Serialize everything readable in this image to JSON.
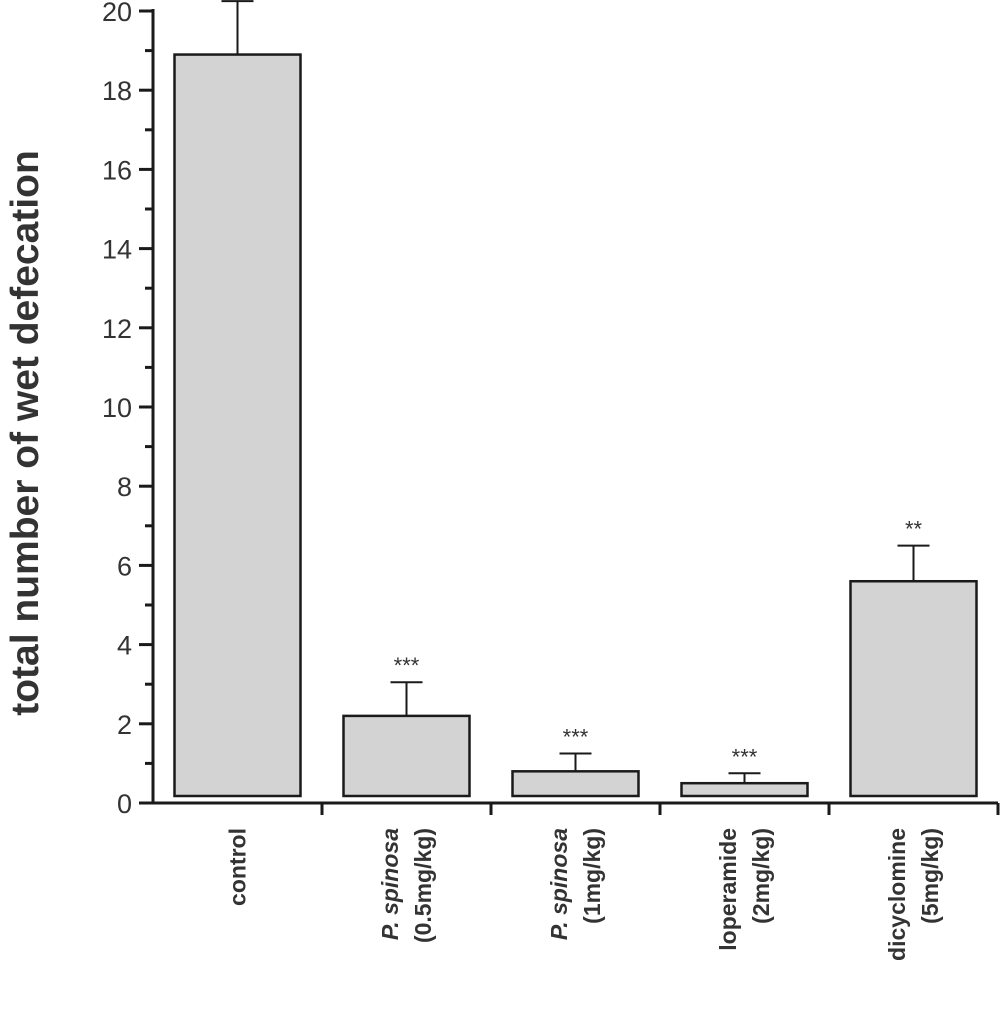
{
  "chart_data": {
    "type": "bar",
    "title": "",
    "xlabel": "",
    "ylabel": "total number of wet defecation",
    "ylim": [
      0,
      20
    ],
    "yticks": [
      "0",
      "2",
      "4",
      "6",
      "8",
      "10",
      "12",
      "14",
      "16",
      "18",
      "20"
    ],
    "categories": [
      {
        "line1": "control",
        "line1_italic_part": "",
        "line2": ""
      },
      {
        "line1": "P. spinosa",
        "line1_italic_part": "P. spinosa",
        "line2": "(0.5mg/kg)"
      },
      {
        "line1": "P. spinosa",
        "line1_italic_part": "P. spinosa",
        "line2": "(1mg/kg)"
      },
      {
        "line1": "loperamide",
        "line1_italic_part": "",
        "line2": "(2mg/kg)"
      },
      {
        "line1": "dicyclomine",
        "line1_italic_part": "",
        "line2": "(5mg/kg)"
      }
    ],
    "values": [
      18.9,
      2.2,
      0.8,
      0.5,
      5.6
    ],
    "errors": [
      1.35,
      0.85,
      0.45,
      0.25,
      0.9
    ],
    "significance": [
      "",
      "***",
      "***",
      "***",
      "**"
    ],
    "bar_color": "#d3d3d3",
    "bar_edge_color": "#1a1a1a",
    "grid": false,
    "legend": "none"
  }
}
